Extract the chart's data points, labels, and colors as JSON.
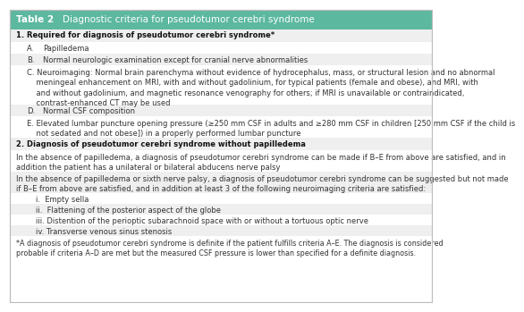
{
  "title_label": "Table 2",
  "title_text": "Diagnostic criteria for pseudotumor cerebri syndrome",
  "header_bg": "#5db8a0",
  "header_text_color": "#ffffff",
  "section1_header": "1. Required for diagnosis of pseudotumor cerebri syndrome*",
  "section2_header": "2. Diagnosis of pseudotumor cerebri syndrome without papilledema",
  "items_A_E": [
    {
      "label": "A.",
      "text": "Papilledema"
    },
    {
      "label": "B.",
      "text": "Normal neurologic examination except for cranial nerve abnormalities"
    },
    {
      "label": "C.",
      "text": "C. Neuroimaging: Normal brain parenchyma without evidence of hydrocephalus, mass, or structural lesion and no abnormal\n    meningeal enhancement on MRI, with and without gadolinium, for typical patients (female and obese), and MRI, with\n    and without gadolinium, and magnetic resonance venography for others; if MRI is unavailable or contraindicated,\n    contrast-enhanced CT may be used"
    },
    {
      "label": "D.",
      "text": "Normal CSF composition"
    },
    {
      "label": "E.",
      "text": "E. Elevated lumbar puncture opening pressure (≥250 mm CSF in adults and ≥280 mm CSF in children [250 mm CSF if the child is\n    not sedated and not obese]) in a properly performed lumbar puncture"
    }
  ],
  "para1": "In the absence of papilledema, a diagnosis of pseudotumor cerebri syndrome can be made if B–E from above are satisfied, and in\naddition the patient has a unilateral or bilateral abducens nerve palsy",
  "para2": "In the absence of papilledema or sixth nerve palsy, a diagnosis of pseudotumor cerebri syndrome can be suggested but not made\nif B–E from above are satisfied, and in addition at least 3 of the following neuroimaging criteria are satisfied:",
  "sub_items": [
    "i.  Empty sella",
    "ii.  Flattening of the posterior aspect of the globe",
    "iii. Distention of the perioptic subarachnoid space with or without a tortuous optic nerve",
    "iv. Transverse venous sinus stenosis"
  ],
  "footnote": "*A diagnosis of pseudotumor cerebri syndrome is definite if the patient fulfills criteria A–E. The diagnosis is considered\nprobable if criteria A–D are met but the measured CSF pressure is lower than specified for a definite diagnosis.",
  "bg_light": "#efefef",
  "bg_white": "#ffffff",
  "text_color": "#333333",
  "section_header_bold_color": "#111111",
  "border_color": "#bbbbbb",
  "font_size_header": 7.5,
  "font_size_body": 6.0,
  "font_size_footnote": 5.8
}
